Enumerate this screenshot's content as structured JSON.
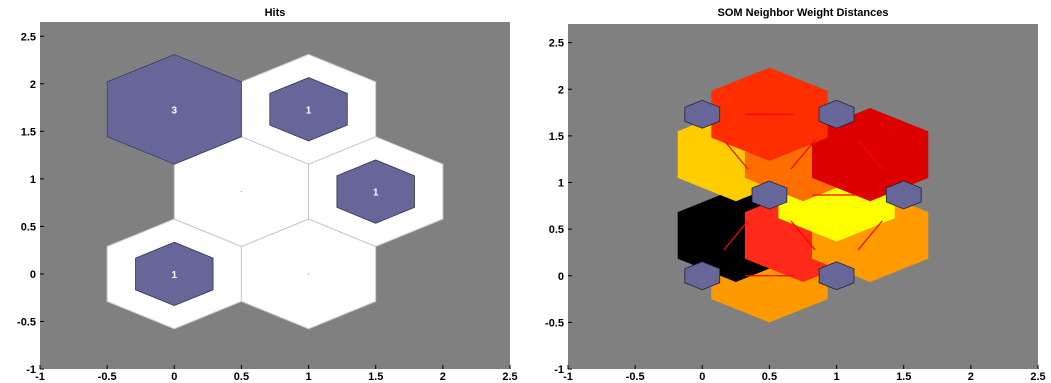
{
  "chart_data": [
    {
      "type": "hexbin",
      "title": "Hits",
      "xlim": [
        -1,
        2.5
      ],
      "ylim": [
        -1,
        2.65
      ],
      "xticks": [
        "-1",
        "-0.5",
        "0",
        "0.5",
        "1",
        "1.5",
        "2",
        "2.5"
      ],
      "yticks": [
        "-1",
        "-0.5",
        "0",
        "0.5",
        "1",
        "1.5",
        "2",
        "2.5"
      ],
      "xtick_values": [
        -1,
        -0.5,
        0,
        0.5,
        1,
        1.5,
        2,
        2.5
      ],
      "ytick_values": [
        -1,
        -0.5,
        0,
        0.5,
        1,
        1.5,
        2,
        2.5
      ],
      "background": "#808080",
      "cell_color": "#ffffff",
      "hit_color": "#666699",
      "neurons": [
        {
          "x": 0,
          "y": 0,
          "hits": 1,
          "label": "1"
        },
        {
          "x": 1,
          "y": 0,
          "hits": 0,
          "label": ""
        },
        {
          "x": 0.5,
          "y": 0.866,
          "hits": 0,
          "label": ""
        },
        {
          "x": 1.5,
          "y": 0.866,
          "hits": 1,
          "label": "1"
        },
        {
          "x": 0,
          "y": 1.732,
          "hits": 3,
          "label": "3"
        },
        {
          "x": 1,
          "y": 1.732,
          "hits": 1,
          "label": "1"
        }
      ],
      "max_hits": 3
    },
    {
      "type": "hexbin",
      "title": "SOM Neighbor Weight Distances",
      "xlim": [
        -1,
        2.5
      ],
      "ylim": [
        -1,
        2.7
      ],
      "xticks": [
        "-1",
        "-0.5",
        "0",
        "0.5",
        "1",
        "1.5",
        "2",
        "2.5"
      ],
      "yticks": [
        "-1",
        "-0.5",
        "0",
        "0.5",
        "1",
        "1.5",
        "2",
        "2.5"
      ],
      "xtick_values": [
        -1,
        -0.5,
        0,
        0.5,
        1,
        1.5,
        2,
        2.5
      ],
      "ytick_values": [
        -1,
        -0.5,
        0,
        0.5,
        1,
        1.5,
        2,
        2.5
      ],
      "background": "#808080",
      "neuron_color": "#666699",
      "line_color": "#ff0000",
      "neurons": [
        {
          "x": 0,
          "y": 0
        },
        {
          "x": 1,
          "y": 0
        },
        {
          "x": 0.5,
          "y": 0.866
        },
        {
          "x": 1.5,
          "y": 0.866
        },
        {
          "x": 0,
          "y": 1.732
        },
        {
          "x": 1,
          "y": 1.732
        }
      ],
      "distance_patches": [
        {
          "x": 0.5,
          "y": 0,
          "color": "#ff9900",
          "angle": 0
        },
        {
          "x": 0.25,
          "y": 0.433,
          "color": "#000000",
          "angle": 60
        },
        {
          "x": 0.75,
          "y": 0.433,
          "color": "#ff2a1a",
          "angle": -60
        },
        {
          "x": 1.25,
          "y": 0.433,
          "color": "#ff9a00",
          "angle": 60
        },
        {
          "x": 1.0,
          "y": 0.866,
          "color": "#ffff00",
          "angle": 0
        },
        {
          "x": 0.25,
          "y": 1.299,
          "color": "#ffcc00",
          "angle": -60
        },
        {
          "x": 0.75,
          "y": 1.299,
          "color": "#ff6e00",
          "angle": 60
        },
        {
          "x": 1.25,
          "y": 1.299,
          "color": "#dd0000",
          "angle": -60
        },
        {
          "x": 0.5,
          "y": 1.732,
          "color": "#ff2e00",
          "angle": 0
        }
      ]
    }
  ]
}
